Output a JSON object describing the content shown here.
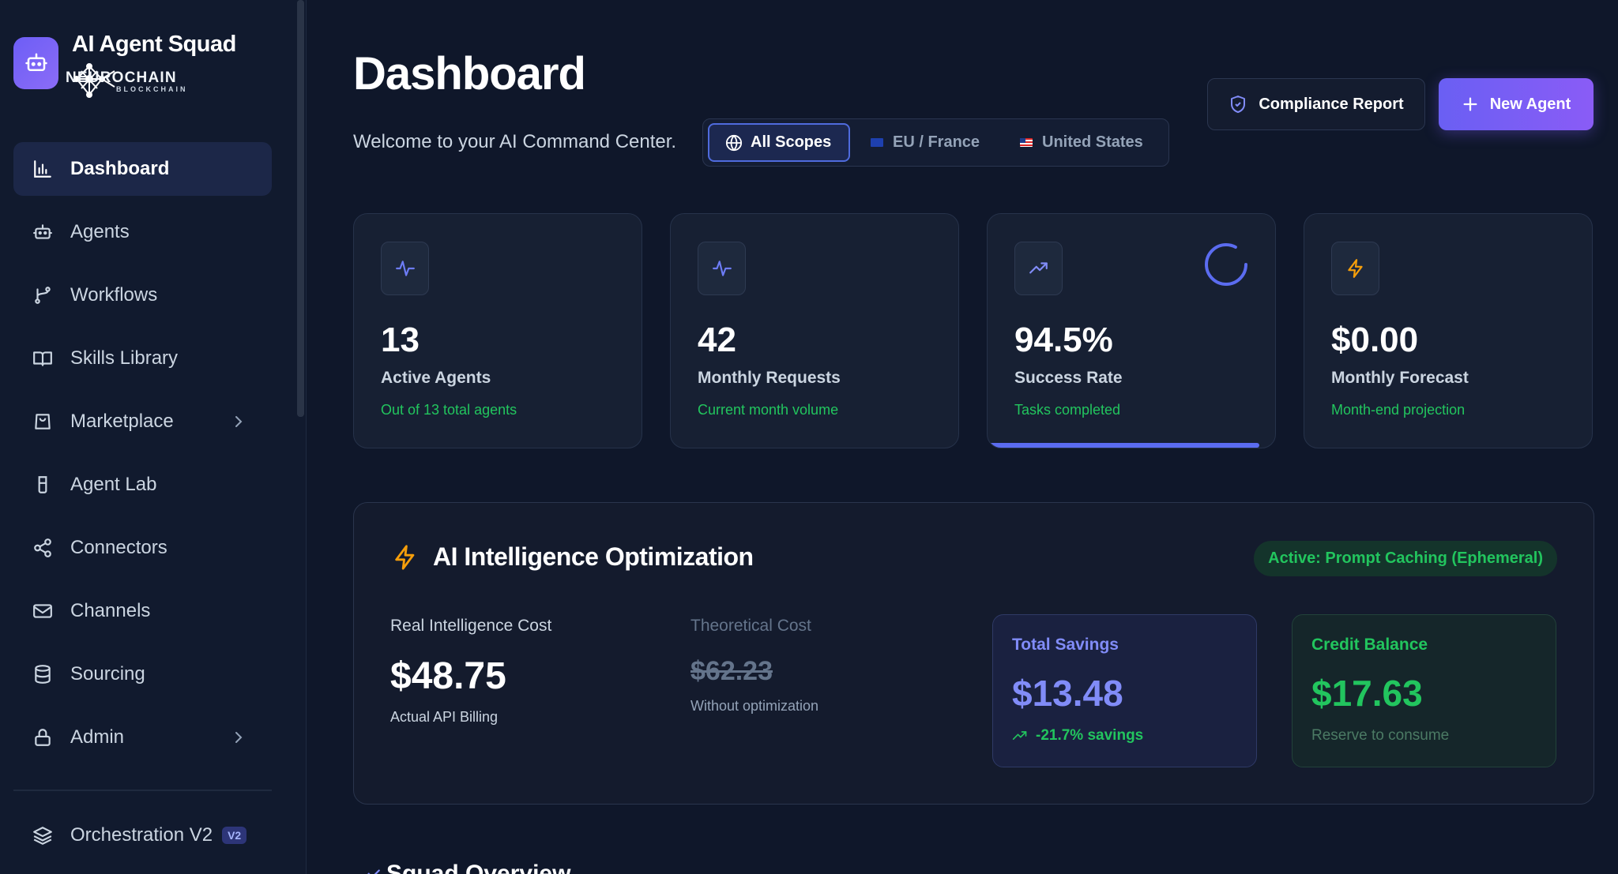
{
  "brand": {
    "title": "AI Agent Squad",
    "sub_main": "NEUROCHAIN",
    "sub_small": "BLOCKCHAIN",
    "logo_icon": "robot-icon"
  },
  "sidebar": {
    "items": [
      {
        "label": "Dashboard",
        "icon": "bar-chart-icon",
        "active": true
      },
      {
        "label": "Agents",
        "icon": "robot-icon"
      },
      {
        "label": "Workflows",
        "icon": "git-branch-icon"
      },
      {
        "label": "Skills Library",
        "icon": "book-icon"
      },
      {
        "label": "Marketplace",
        "icon": "shopping-bag-icon",
        "has_chevron": true
      },
      {
        "label": "Agent Lab",
        "icon": "beaker-icon"
      },
      {
        "label": "Connectors",
        "icon": "share-nodes-icon"
      },
      {
        "label": "Channels",
        "icon": "mail-icon"
      },
      {
        "label": "Sourcing",
        "icon": "database-icon"
      },
      {
        "label": "Admin",
        "icon": "lock-icon",
        "has_chevron": true
      }
    ],
    "orchestration": {
      "label": "Orchestration V2",
      "badge": "V2",
      "icon": "layers-icon"
    }
  },
  "header": {
    "title": "Dashboard",
    "subtitle": "Welcome to your AI Command Center.",
    "scopes": [
      {
        "label": "All Scopes",
        "active": true,
        "icon": "globe-icon"
      },
      {
        "label": "EU / France",
        "icon": "eu-flag-icon"
      },
      {
        "label": "United States",
        "icon": "us-flag-icon"
      }
    ],
    "compliance_label": "Compliance Report",
    "new_agent_label": "New Agent"
  },
  "stats": [
    {
      "value": "13",
      "label": "Active Agents",
      "sub": "Out of 13 total agents",
      "icon": "activity-icon"
    },
    {
      "value": "42",
      "label": "Monthly Requests",
      "sub": "Current month volume",
      "icon": "activity-icon"
    },
    {
      "value": "94.5%",
      "label": "Success Rate",
      "sub": "Tasks completed",
      "icon": "trending-up-icon",
      "progress": 0.945
    },
    {
      "value": "$0.00",
      "label": "Monthly Forecast",
      "sub": "Month-end projection",
      "icon": "lightning-icon"
    }
  ],
  "optimization": {
    "title": "AI Intelligence Optimization",
    "badge": "Active: Prompt Caching (Ephemeral)",
    "real_cost": {
      "label": "Real Intelligence Cost",
      "value": "$48.75",
      "sub": "Actual API Billing"
    },
    "theoretical_cost": {
      "label": "Theoretical Cost",
      "value": "$62.23",
      "sub": "Without optimization"
    },
    "savings": {
      "label": "Total Savings",
      "value": "$13.48",
      "sub": "-21.7% savings"
    },
    "credit": {
      "label": "Credit Balance",
      "value": "$17.63",
      "sub": "Reserve to consume"
    }
  },
  "squad_overview": {
    "title": "Squad Overview"
  },
  "colors": {
    "accent": "#6d5ef6",
    "success": "#22c55e",
    "indigo": "#818cf8",
    "background": "#0f172a"
  }
}
